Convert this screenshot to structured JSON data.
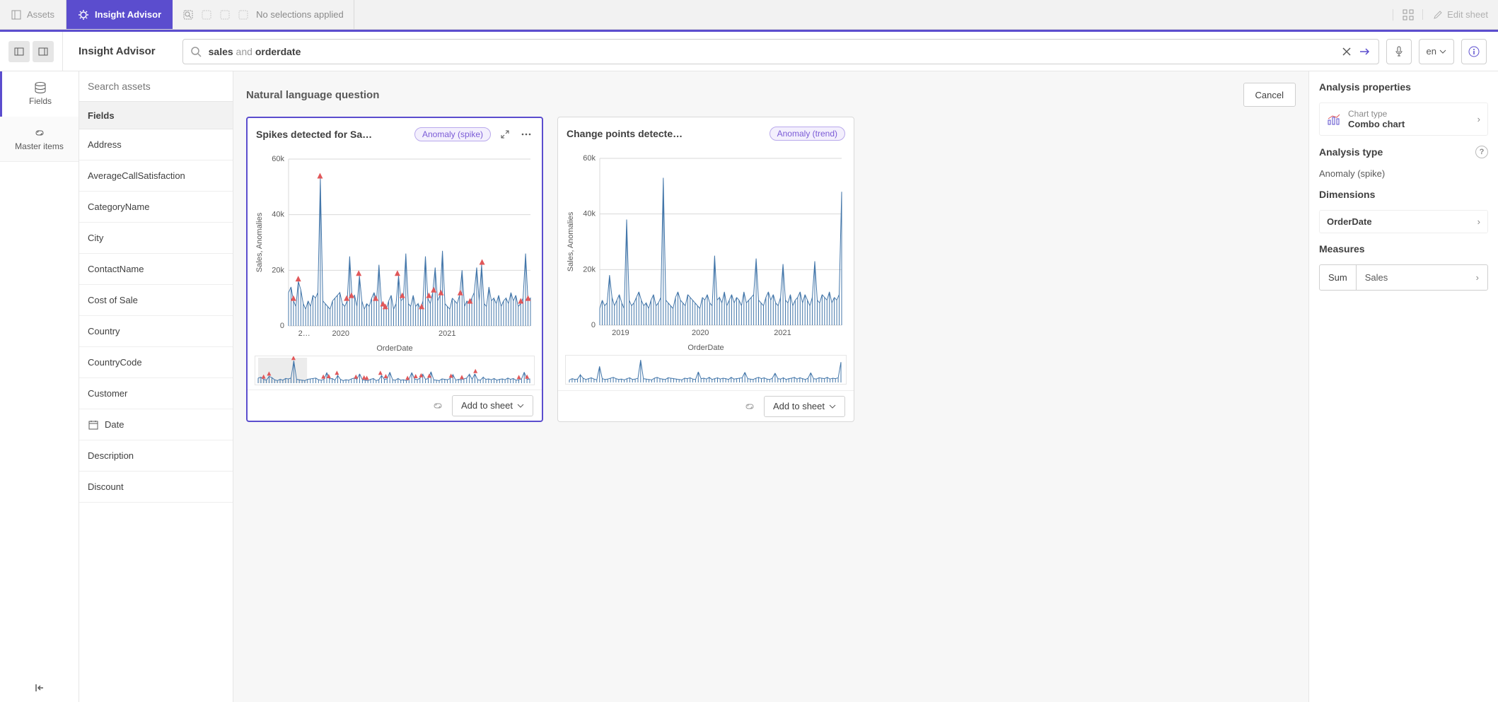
{
  "topbar": {
    "assets_tab": "Assets",
    "advisor_tab": "Insight Advisor",
    "no_selection": "No selections applied",
    "edit_sheet": "Edit sheet"
  },
  "header": {
    "title": "Insight Advisor",
    "search_term1": "sales",
    "search_and": " and ",
    "search_term2": "orderdate",
    "lang": "en"
  },
  "leftnav": {
    "fields": "Fields",
    "master": "Master items"
  },
  "assets": {
    "search_placeholder": "Search assets",
    "section": "Fields",
    "items": [
      {
        "label": "Address"
      },
      {
        "label": "AverageCallSatisfaction"
      },
      {
        "label": "CategoryName"
      },
      {
        "label": "City"
      },
      {
        "label": "ContactName"
      },
      {
        "label": "Cost of Sale"
      },
      {
        "label": "Country"
      },
      {
        "label": "CountryCode"
      },
      {
        "label": "Customer"
      },
      {
        "label": "Date",
        "has_icon": true
      },
      {
        "label": "Description"
      },
      {
        "label": "Discount"
      }
    ]
  },
  "center": {
    "nlq": "Natural language question",
    "cancel": "Cancel"
  },
  "cards": [
    {
      "title": "Spikes detected for Sa…",
      "tag": "Anomaly (spike)",
      "tag_kind": "spike",
      "selected": true,
      "show_expand": true,
      "chart": {
        "ylabel": "Sales, Anomalies",
        "xlabel": "OrderDate",
        "yticks": [
          0,
          20000,
          40000,
          60000
        ],
        "ytick_labels": [
          "0",
          "20k",
          "40k",
          "60k"
        ],
        "xtick_labels": [
          "2…",
          "2020",
          "2021"
        ],
        "xticks": [
          0.04,
          0.18,
          0.62
        ],
        "ylim": 60000,
        "brush": {
          "from": 0.0,
          "to": 0.18
        },
        "series": [
          12000,
          14000,
          9000,
          7000,
          16000,
          13000,
          8000,
          6000,
          9000,
          7000,
          11000,
          10000,
          12000,
          53000,
          9000,
          8000,
          7000,
          6000,
          9000,
          10000,
          11000,
          12000,
          8000,
          7000,
          9000,
          25000,
          10000,
          11000,
          7000,
          18000,
          9000,
          6000,
          8000,
          7000,
          10000,
          12000,
          9000,
          22000,
          8000,
          7000,
          6000,
          9000,
          11000,
          6000,
          8000,
          18000,
          9000,
          10000,
          26000,
          8000,
          7000,
          11000,
          7000,
          8000,
          6000,
          9000,
          25000,
          10000,
          8000,
          12000,
          21000,
          9000,
          11000,
          27000,
          8000,
          7000,
          6000,
          10000,
          9000,
          8000,
          11000,
          20000,
          7000,
          9000,
          8000,
          10000,
          12000,
          21000,
          9000,
          22000,
          8000,
          7000,
          14000,
          9000,
          10000,
          8000,
          11000,
          7000,
          9000,
          10000,
          8000,
          12000,
          9000,
          11000,
          7000,
          8000,
          10000,
          26000,
          9000,
          10000
        ],
        "anomalies": [
          0.02,
          0.04,
          0.13,
          0.24,
          0.26,
          0.29,
          0.36,
          0.39,
          0.4,
          0.45,
          0.47,
          0.55,
          0.58,
          0.6,
          0.63,
          0.71,
          0.75,
          0.8,
          0.96,
          0.99
        ],
        "colors": {
          "line": "#4477aa",
          "marker": "#e15759",
          "grid": "#d9d9d9",
          "brush": "#d9d9d9"
        }
      },
      "add_label": "Add to sheet"
    },
    {
      "title": "Change points detecte…",
      "tag": "Anomaly (trend)",
      "tag_kind": "trend",
      "selected": false,
      "show_expand": false,
      "chart": {
        "ylabel": "Sales, Anomalies",
        "xlabel": "OrderDate",
        "yticks": [
          0,
          20000,
          40000,
          60000
        ],
        "ytick_labels": [
          "0",
          "20k",
          "40k",
          "60k"
        ],
        "xtick_labels": [
          "2019",
          "2020",
          "2021"
        ],
        "xticks": [
          0.05,
          0.38,
          0.72
        ],
        "ylim": 60000,
        "brush": null,
        "series": [
          6000,
          9000,
          7000,
          8000,
          18000,
          10000,
          7000,
          9000,
          11000,
          8000,
          6000,
          38000,
          9000,
          7000,
          8000,
          10000,
          12000,
          9000,
          7000,
          8000,
          6000,
          9000,
          11000,
          7000,
          8000,
          10000,
          53000,
          9000,
          8000,
          7000,
          6000,
          10000,
          12000,
          9000,
          8000,
          7000,
          11000,
          10000,
          9000,
          8000,
          7000,
          6000,
          10000,
          9000,
          11000,
          8000,
          7000,
          25000,
          9000,
          10000,
          8000,
          12000,
          7000,
          9000,
          11000,
          8000,
          10000,
          9000,
          7000,
          12000,
          8000,
          9000,
          10000,
          11000,
          24000,
          9000,
          8000,
          7000,
          10000,
          12000,
          9000,
          11000,
          8000,
          7000,
          10000,
          22000,
          9000,
          8000,
          11000,
          7000,
          9000,
          10000,
          12000,
          8000,
          11000,
          9000,
          7000,
          10000,
          23000,
          9000,
          8000,
          11000,
          10000,
          9000,
          12000,
          8000,
          10000,
          9000,
          11000,
          48000
        ],
        "anomalies": [],
        "colors": {
          "line": "#4477aa",
          "marker": "#e15759",
          "grid": "#d9d9d9",
          "brush": "#d9d9d9"
        }
      },
      "add_label": "Add to sheet"
    }
  ],
  "right": {
    "title": "Analysis properties",
    "chart_type_label": "Chart type",
    "chart_type_value": "Combo chart",
    "analysis_type_label": "Analysis type",
    "analysis_type_value": "Anomaly (spike)",
    "dimensions_label": "Dimensions",
    "dimension_value": "OrderDate",
    "measures_label": "Measures",
    "measure_agg": "Sum",
    "measure_value": "Sales"
  }
}
